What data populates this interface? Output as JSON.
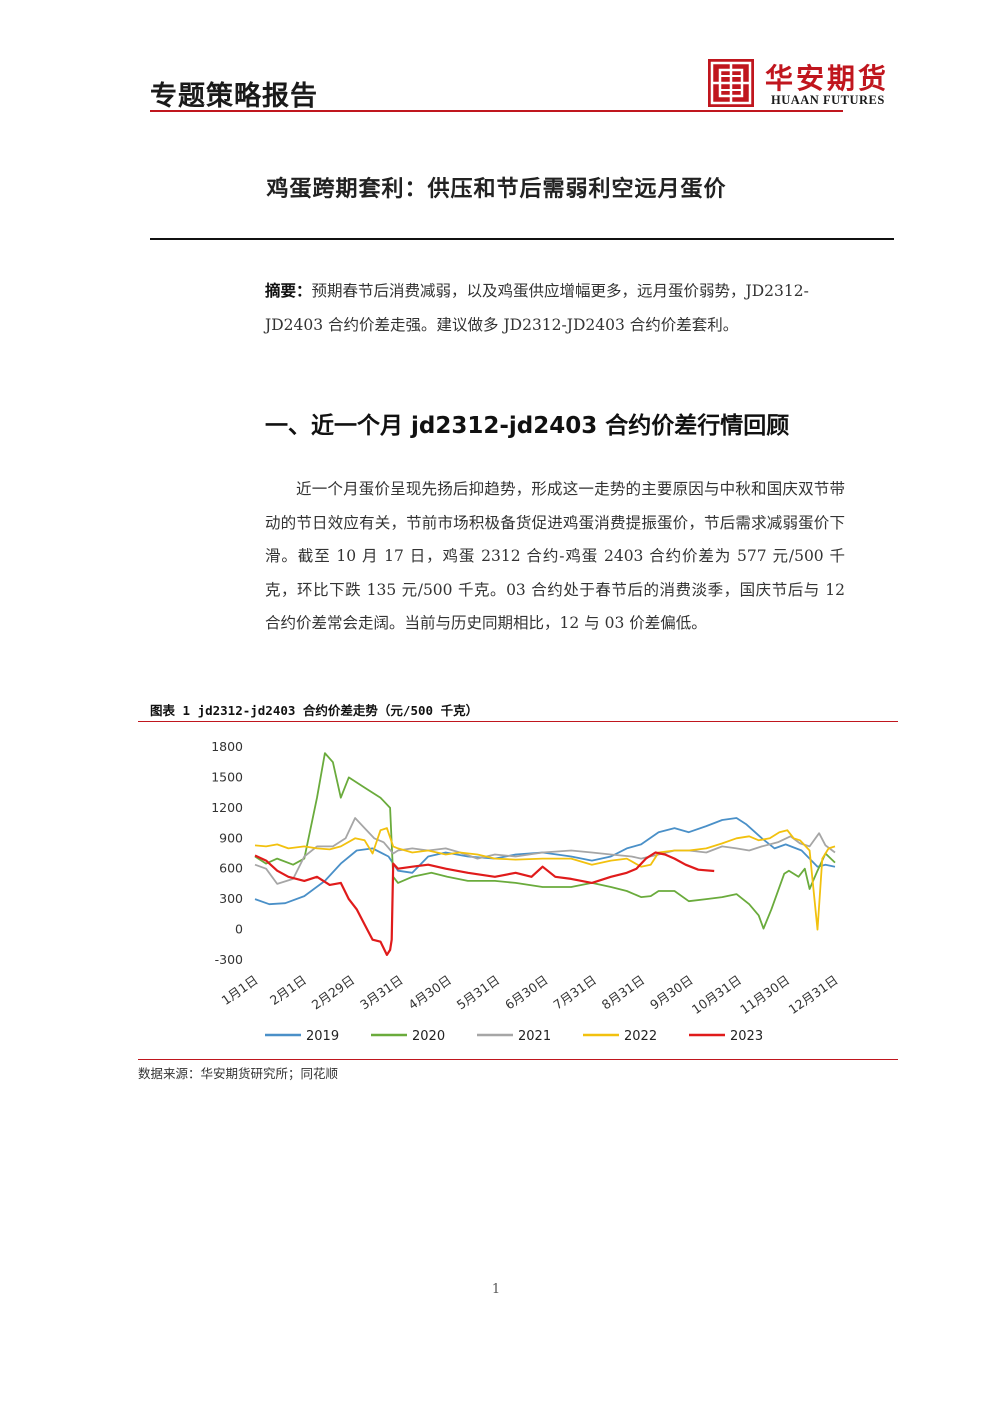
{
  "header": {
    "title": "专题策略报告",
    "logo_cn": "华安期货",
    "logo_en": "HUAAN FUTURES"
  },
  "document": {
    "title": "鸡蛋跨期套利：供压和节后需弱利空远月蛋价",
    "summary_label": "摘要：",
    "summary_text": "预期春节后消费减弱，以及鸡蛋供应增幅更多，远月蛋价弱势，JD2312-JD2403 合约价差走强。建议做多 JD2312-JD2403 合约价差套利。",
    "section_title": "一、近一个月 jd2312-jd2403 合约价差行情回顾",
    "body_text": "近一个月蛋价呈现先扬后抑趋势，形成这一走势的主要原因与中秋和国庆双节带动的节日效应有关，节前市场积极备货促进鸡蛋消费提振蛋价，节后需求减弱蛋价下滑。截至 10 月 17 日，鸡蛋 2312 合约-鸡蛋 2403 合约价差为 577 元/500 千克，环比下跌 135 元/500 千克。03 合约处于春节后的消费淡季，国庆节后与 12 合约价差常会走阔。当前与历史同期相比，12 与 03 价差偏低。",
    "figure_caption": "图表 1 jd2312-jd2403 合约价差走势（元/500 千克）",
    "source": "数据来源：华安期货研究所；同花顺",
    "page_number": "1"
  },
  "colors": {
    "accent": "#c0161e",
    "s2019": "#4a90c8",
    "s2020": "#6aab3c",
    "s2021": "#a6a6a6",
    "s2022": "#f2c10e",
    "s2023": "#e01b1b"
  },
  "chart_data": {
    "type": "line",
    "title": "",
    "xlabel": "",
    "ylabel": "",
    "x_ticks": [
      "1月1日",
      "2月1日",
      "2月29日",
      "3月31日",
      "4月30日",
      "5月31日",
      "6月30日",
      "7月31日",
      "8月31日",
      "9月30日",
      "10月31日",
      "11月30日",
      "12月31日"
    ],
    "y_ticks": [
      1800,
      1500,
      1200,
      900,
      600,
      300,
      0,
      -300
    ],
    "ylim": [
      -300,
      1800
    ],
    "xlim": [
      1,
      366
    ],
    "grid": false,
    "legend_position": "bottom",
    "series": [
      {
        "name": "2019",
        "color": "#4a90c8",
        "points": [
          [
            1,
            300
          ],
          [
            10,
            250
          ],
          [
            20,
            260
          ],
          [
            32,
            330
          ],
          [
            45,
            480
          ],
          [
            55,
            650
          ],
          [
            65,
            780
          ],
          [
            75,
            800
          ],
          [
            85,
            720
          ],
          [
            91,
            580
          ],
          [
            100,
            560
          ],
          [
            110,
            720
          ],
          [
            121,
            760
          ],
          [
            135,
            720
          ],
          [
            152,
            700
          ],
          [
            165,
            740
          ],
          [
            182,
            760
          ],
          [
            200,
            720
          ],
          [
            213,
            680
          ],
          [
            225,
            720
          ],
          [
            235,
            800
          ],
          [
            244,
            840
          ],
          [
            255,
            960
          ],
          [
            265,
            1000
          ],
          [
            274,
            960
          ],
          [
            285,
            1020
          ],
          [
            295,
            1080
          ],
          [
            304,
            1100
          ],
          [
            310,
            1040
          ],
          [
            320,
            900
          ],
          [
            328,
            800
          ],
          [
            335,
            840
          ],
          [
            345,
            780
          ],
          [
            355,
            620
          ],
          [
            360,
            640
          ],
          [
            366,
            620
          ]
        ]
      },
      {
        "name": "2020",
        "color": "#6aab3c",
        "points": [
          [
            1,
            720
          ],
          [
            8,
            650
          ],
          [
            15,
            700
          ],
          [
            25,
            640
          ],
          [
            32,
            700
          ],
          [
            40,
            1300
          ],
          [
            45,
            1740
          ],
          [
            50,
            1650
          ],
          [
            55,
            1300
          ],
          [
            60,
            1500
          ],
          [
            70,
            1400
          ],
          [
            80,
            1300
          ],
          [
            86,
            1200
          ],
          [
            88,
            520
          ],
          [
            91,
            460
          ],
          [
            100,
            520
          ],
          [
            112,
            560
          ],
          [
            122,
            520
          ],
          [
            135,
            480
          ],
          [
            152,
            480
          ],
          [
            165,
            460
          ],
          [
            182,
            420
          ],
          [
            200,
            420
          ],
          [
            213,
            460
          ],
          [
            225,
            420
          ],
          [
            235,
            380
          ],
          [
            244,
            320
          ],
          [
            250,
            330
          ],
          [
            255,
            380
          ],
          [
            265,
            380
          ],
          [
            274,
            280
          ],
          [
            285,
            300
          ],
          [
            295,
            320
          ],
          [
            304,
            350
          ],
          [
            312,
            250
          ],
          [
            318,
            140
          ],
          [
            321,
            10
          ],
          [
            326,
            200
          ],
          [
            334,
            550
          ],
          [
            337,
            580
          ],
          [
            343,
            520
          ],
          [
            347,
            600
          ],
          [
            350,
            400
          ],
          [
            355,
            580
          ],
          [
            360,
            750
          ],
          [
            366,
            660
          ]
        ]
      },
      {
        "name": "2021",
        "color": "#a6a6a6",
        "points": [
          [
            1,
            640
          ],
          [
            8,
            600
          ],
          [
            15,
            450
          ],
          [
            25,
            500
          ],
          [
            32,
            720
          ],
          [
            40,
            820
          ],
          [
            50,
            820
          ],
          [
            58,
            900
          ],
          [
            64,
            1100
          ],
          [
            70,
            1000
          ],
          [
            76,
            900
          ],
          [
            82,
            860
          ],
          [
            88,
            750
          ],
          [
            91,
            780
          ],
          [
            100,
            800
          ],
          [
            110,
            780
          ],
          [
            121,
            800
          ],
          [
            130,
            760
          ],
          [
            141,
            700
          ],
          [
            152,
            740
          ],
          [
            165,
            720
          ],
          [
            182,
            760
          ],
          [
            200,
            780
          ],
          [
            213,
            760
          ],
          [
            225,
            740
          ],
          [
            238,
            720
          ],
          [
            244,
            700
          ],
          [
            255,
            740
          ],
          [
            265,
            780
          ],
          [
            274,
            780
          ],
          [
            285,
            760
          ],
          [
            295,
            820
          ],
          [
            304,
            800
          ],
          [
            312,
            780
          ],
          [
            320,
            820
          ],
          [
            330,
            860
          ],
          [
            338,
            920
          ],
          [
            344,
            850
          ],
          [
            350,
            820
          ],
          [
            356,
            950
          ],
          [
            360,
            830
          ],
          [
            366,
            760
          ]
        ]
      },
      {
        "name": "2022",
        "color": "#f2c10e",
        "points": [
          [
            1,
            830
          ],
          [
            8,
            820
          ],
          [
            15,
            840
          ],
          [
            22,
            800
          ],
          [
            32,
            820
          ],
          [
            40,
            800
          ],
          [
            48,
            790
          ],
          [
            55,
            820
          ],
          [
            64,
            900
          ],
          [
            70,
            880
          ],
          [
            75,
            750
          ],
          [
            80,
            980
          ],
          [
            84,
            1000
          ],
          [
            88,
            820
          ],
          [
            91,
            800
          ],
          [
            100,
            760
          ],
          [
            110,
            780
          ],
          [
            121,
            740
          ],
          [
            130,
            760
          ],
          [
            141,
            740
          ],
          [
            152,
            700
          ],
          [
            165,
            690
          ],
          [
            182,
            700
          ],
          [
            200,
            700
          ],
          [
            213,
            640
          ],
          [
            225,
            680
          ],
          [
            235,
            700
          ],
          [
            244,
            620
          ],
          [
            250,
            640
          ],
          [
            255,
            760
          ],
          [
            265,
            780
          ],
          [
            274,
            780
          ],
          [
            285,
            800
          ],
          [
            295,
            850
          ],
          [
            304,
            900
          ],
          [
            312,
            920
          ],
          [
            318,
            880
          ],
          [
            325,
            900
          ],
          [
            331,
            960
          ],
          [
            336,
            980
          ],
          [
            340,
            900
          ],
          [
            344,
            880
          ],
          [
            350,
            780
          ],
          [
            355,
            0
          ],
          [
            358,
            700
          ],
          [
            362,
            800
          ],
          [
            366,
            820
          ]
        ]
      },
      {
        "name": "2023",
        "color": "#e01b1b",
        "points": [
          [
            1,
            730
          ],
          [
            8,
            680
          ],
          [
            15,
            580
          ],
          [
            22,
            520
          ],
          [
            32,
            480
          ],
          [
            40,
            520
          ],
          [
            48,
            440
          ],
          [
            55,
            460
          ],
          [
            60,
            300
          ],
          [
            65,
            200
          ],
          [
            70,
            50
          ],
          [
            75,
            -100
          ],
          [
            80,
            -120
          ],
          [
            84,
            -250
          ],
          [
            86,
            -200
          ],
          [
            87,
            -100
          ],
          [
            88,
            650
          ],
          [
            91,
            600
          ],
          [
            100,
            620
          ],
          [
            110,
            640
          ],
          [
            121,
            600
          ],
          [
            135,
            560
          ],
          [
            152,
            520
          ],
          [
            165,
            560
          ],
          [
            175,
            520
          ],
          [
            182,
            620
          ],
          [
            190,
            520
          ],
          [
            200,
            500
          ],
          [
            213,
            460
          ],
          [
            225,
            520
          ],
          [
            235,
            560
          ],
          [
            241,
            600
          ],
          [
            247,
            700
          ],
          [
            253,
            760
          ],
          [
            259,
            740
          ],
          [
            265,
            700
          ],
          [
            272,
            640
          ],
          [
            280,
            590
          ],
          [
            290,
            577
          ]
        ]
      }
    ]
  }
}
